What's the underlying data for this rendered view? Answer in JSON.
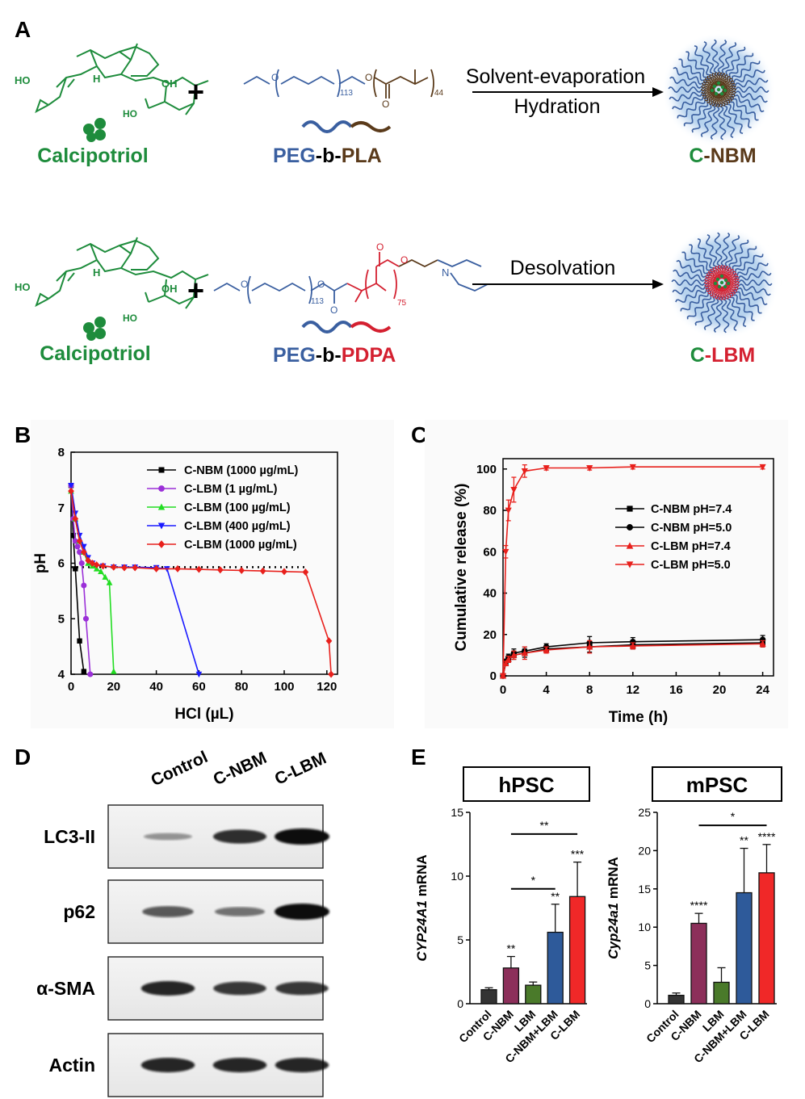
{
  "panels": {
    "A": {
      "letter": "A",
      "row1": {
        "drug_label": "Calcipotriol",
        "drug_labels": [
          "HO",
          "H",
          "OH",
          "HO"
        ],
        "polymer_a": "PEG",
        "dash1": "-b-",
        "polymer_b": "PLA",
        "subscripts": [
          "113",
          "44"
        ],
        "arrow_top": "Solvent-evaporation",
        "arrow_bottom": "Hydration",
        "product_c": "C",
        "product_rest": "-NBM"
      },
      "row2": {
        "drug_label": "Calcipotriol",
        "polymer_a": "PEG",
        "dash1": "-b-",
        "polymer_b": "PDPA",
        "subscripts": [
          "113",
          "75"
        ],
        "n_label": "N",
        "arrow_top": "Desolvation",
        "product_c": "C",
        "product_rest": "-LBM"
      },
      "plus": "+",
      "o_label": "O",
      "colors": {
        "green": "#1e8c3c",
        "blue": "#3a5fa0",
        "brown": "#5a3a1a",
        "red": "#d42030"
      }
    },
    "B": {
      "letter": "B",
      "chart_data": {
        "type": "line",
        "xlabel": "HCl (µL)",
        "ylabel": "pH",
        "xlim": [
          0,
          125
        ],
        "ylim": [
          4,
          8
        ],
        "xticks": [
          0,
          20,
          40,
          60,
          80,
          100,
          120
        ],
        "yticks": [
          4,
          5,
          6,
          7,
          8
        ],
        "reference_line": {
          "y": 5.93,
          "x_from": 0,
          "x_to": 110,
          "style": "dotted"
        },
        "series": [
          {
            "name": "C-NBM (1000 µg/mL)",
            "color": "#000000",
            "marker": "square",
            "x": [
              0,
              1,
              2,
              4,
              6
            ],
            "y": [
              7.4,
              6.5,
              5.9,
              4.6,
              4.05
            ]
          },
          {
            "name": "C-LBM (1 µg/mL)",
            "color": "#9b30d8",
            "marker": "circle",
            "x": [
              0,
              1,
              2,
              3,
              4,
              5,
              6,
              7,
              9
            ],
            "y": [
              7.4,
              6.8,
              6.4,
              6.3,
              6.2,
              6.0,
              5.6,
              5.0,
              4.0
            ]
          },
          {
            "name": "C-LBM (100 µg/mL)",
            "color": "#22dd22",
            "marker": "triangle-up",
            "x": [
              0,
              2,
              4,
              6,
              8,
              10,
              12,
              14,
              16,
              18,
              20
            ],
            "y": [
              7.3,
              6.8,
              6.4,
              6.2,
              6.0,
              5.95,
              5.9,
              5.85,
              5.75,
              5.65,
              4.05
            ]
          },
          {
            "name": "C-LBM (400 µg/mL)",
            "color": "#1a1aff",
            "marker": "triangle-down",
            "x": [
              0,
              2,
              4,
              6,
              8,
              10,
              15,
              20,
              25,
              30,
              40,
              45,
              60
            ],
            "y": [
              7.4,
              6.9,
              6.5,
              6.3,
              6.1,
              6.0,
              5.95,
              5.93,
              5.93,
              5.93,
              5.92,
              5.9,
              4.0
            ]
          },
          {
            "name": "C-LBM (1000 µg/mL)",
            "color": "#e8201c",
            "marker": "diamond",
            "x": [
              0,
              2,
              4,
              6,
              8,
              10,
              12,
              15,
              20,
              25,
              30,
              40,
              50,
              60,
              70,
              80,
              90,
              100,
              110,
              121,
              122
            ],
            "y": [
              7.3,
              6.8,
              6.4,
              6.2,
              6.05,
              6.0,
              5.97,
              5.95,
              5.93,
              5.92,
              5.92,
              5.9,
              5.9,
              5.89,
              5.88,
              5.87,
              5.86,
              5.85,
              5.84,
              4.6,
              4.0
            ]
          }
        ]
      }
    },
    "C": {
      "letter": "C",
      "chart_data": {
        "type": "line",
        "xlabel": "Time (h)",
        "ylabel": "Cumulative release (%)",
        "xlim": [
          0,
          25
        ],
        "ylim": [
          0,
          105
        ],
        "xticks": [
          0,
          4,
          8,
          12,
          16,
          20,
          24
        ],
        "yticks": [
          0,
          20,
          40,
          60,
          80,
          100
        ],
        "series": [
          {
            "name": "C-NBM pH=7.4",
            "color": "#000000",
            "marker": "square",
            "x": [
              0,
              0.25,
              0.5,
              1,
              2,
              4,
              8,
              12,
              24
            ],
            "y": [
              0,
              6,
              8,
              10,
              11,
              13,
              14,
              15,
              16
            ],
            "err": [
              0,
              1,
              1.5,
              2,
              2,
              1.5,
              2.5,
              2,
              2
            ]
          },
          {
            "name": "C-NBM pH=5.0",
            "color": "#000000",
            "marker": "circle",
            "x": [
              0,
              0.25,
              0.5,
              1,
              2,
              4,
              8,
              12,
              24
            ],
            "y": [
              0,
              7,
              9,
              11,
              12,
              14,
              16,
              16.5,
              17.5
            ],
            "err": [
              0,
              1,
              1.5,
              2,
              2,
              1.5,
              3,
              2,
              2
            ]
          },
          {
            "name": "C-LBM pH=7.4",
            "color": "#e8201c",
            "marker": "triangle-up",
            "x": [
              0,
              0.25,
              0.5,
              1,
              2,
              4,
              8,
              12,
              24
            ],
            "y": [
              0,
              6,
              8,
              10,
              11,
              12.5,
              14,
              14.5,
              15.5
            ],
            "err": [
              0,
              1,
              1.5,
              2,
              3,
              1.5,
              3,
              1.5,
              1.5
            ]
          },
          {
            "name": "C-LBM pH=5.0",
            "color": "#e8201c",
            "marker": "triangle-down",
            "x": [
              0,
              0.25,
              0.5,
              1,
              2,
              4,
              8,
              12,
              24
            ],
            "y": [
              0,
              60,
              80,
              90,
              99,
              100.5,
              100.5,
              101,
              101
            ],
            "err": [
              0,
              3,
              5,
              6,
              3,
              1,
              1,
              1,
              1
            ]
          }
        ]
      }
    },
    "D": {
      "letter": "D",
      "lanes": [
        "Control",
        "C-NBM",
        "C-LBM"
      ],
      "rows": [
        {
          "label": "LC3-II",
          "intensity": [
            0.2,
            0.8,
            1.0
          ]
        },
        {
          "label": "p62",
          "intensity": [
            0.55,
            0.4,
            1.0
          ]
        },
        {
          "label": "α-SMA",
          "intensity": [
            0.85,
            0.75,
            0.75
          ]
        },
        {
          "label": "Actin",
          "intensity": [
            0.85,
            0.85,
            0.85
          ]
        }
      ]
    },
    "E": {
      "letter": "E",
      "chart_data": [
        {
          "type": "bar",
          "title": "hPSC",
          "ylabel_italic": "CYP24A1",
          "ylabel_rest": " mRNA",
          "categories": [
            "Control",
            "C-NBM",
            "LBM",
            "C-NBM+LBM",
            "C-LBM"
          ],
          "values": [
            1.1,
            2.8,
            1.45,
            5.6,
            8.4
          ],
          "errors": [
            0.15,
            0.9,
            0.25,
            2.2,
            2.7
          ],
          "colors": [
            "#333333",
            "#8c2f5a",
            "#4a7a2a",
            "#2e5a9a",
            "#f02828"
          ],
          "sig_above": [
            "",
            "**",
            "",
            "**",
            "***"
          ],
          "brackets": [
            {
              "from": 1,
              "to": 4,
              "label": "**",
              "y": 13.3
            },
            {
              "from": 1,
              "to": 3,
              "label": "*",
              "y": 9.0
            }
          ],
          "ylim": [
            0,
            15
          ],
          "yticks": [
            0,
            5,
            10,
            15
          ]
        },
        {
          "type": "bar",
          "title": "mPSC",
          "ylabel_italic": "Cyp24a1",
          "ylabel_rest": " mRNA",
          "categories": [
            "Control",
            "C-NBM",
            "LBM",
            "C-NBM+LBM",
            "C-LBM"
          ],
          "values": [
            1.1,
            10.5,
            2.8,
            14.5,
            17.1
          ],
          "errors": [
            0.3,
            1.3,
            1.9,
            5.8,
            3.7
          ],
          "colors": [
            "#333333",
            "#8c2f5a",
            "#4a7a2a",
            "#2e5a9a",
            "#f02828"
          ],
          "sig_above": [
            "",
            "****",
            "",
            "**",
            "****"
          ],
          "brackets": [
            {
              "from": 1,
              "to": 4,
              "label": "*",
              "y": 23.3
            }
          ],
          "ylim": [
            0,
            25
          ],
          "yticks": [
            0,
            5,
            10,
            15,
            20,
            25
          ]
        }
      ]
    }
  }
}
